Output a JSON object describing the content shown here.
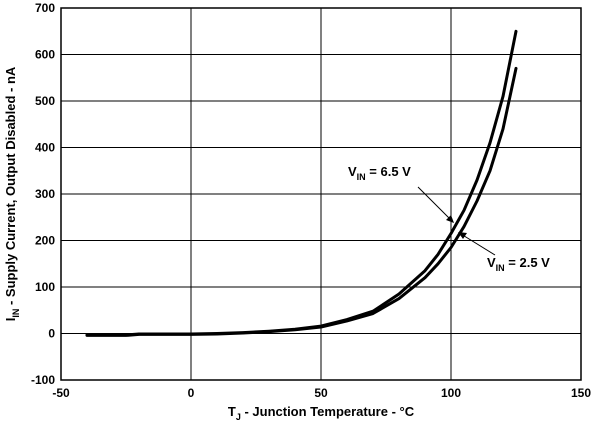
{
  "chart_data": {
    "type": "line",
    "x_axis": {
      "title": "T",
      "title_sub": "J",
      "title_rest": " - Junction Temperature - °C",
      "range": [
        -50,
        150
      ],
      "ticks": [
        -50,
        0,
        50,
        100,
        150
      ]
    },
    "y_axis": {
      "title": "I",
      "title_sub": "IN",
      "title_rest": " - Supply Current, Output Disabled - nA",
      "range": [
        -100,
        700
      ],
      "ticks": [
        -100,
        0,
        100,
        200,
        300,
        400,
        500,
        600,
        700
      ]
    },
    "grid": true,
    "series": [
      {
        "name": "VIN = 6.5 V",
        "x": [
          -40,
          -25,
          -20,
          -10,
          0,
          10,
          20,
          30,
          40,
          50,
          60,
          70,
          80,
          90,
          95,
          100,
          105,
          110,
          115,
          120,
          125
        ],
        "y": [
          -3,
          -3,
          -1,
          -1,
          -1,
          0,
          2,
          5,
          9,
          16,
          30,
          48,
          85,
          135,
          170,
          215,
          265,
          330,
          410,
          510,
          650
        ]
      },
      {
        "name": "VIN = 2.5 V",
        "x": [
          -40,
          -25,
          -20,
          -10,
          0,
          10,
          20,
          30,
          40,
          50,
          60,
          70,
          80,
          90,
          95,
          100,
          105,
          110,
          115,
          120,
          125
        ],
        "y": [
          -4,
          -4,
          -2,
          -2,
          -2,
          -1,
          1,
          4,
          8,
          14,
          27,
          43,
          75,
          120,
          150,
          185,
          230,
          285,
          350,
          440,
          570
        ]
      }
    ],
    "annotations": [
      {
        "label": "V",
        "label_sub": "IN",
        "label_rest": " = 6.5 V",
        "series": 0
      },
      {
        "label": "V",
        "label_sub": "IN",
        "label_rest": " = 2.5 V",
        "series": 1
      }
    ]
  }
}
